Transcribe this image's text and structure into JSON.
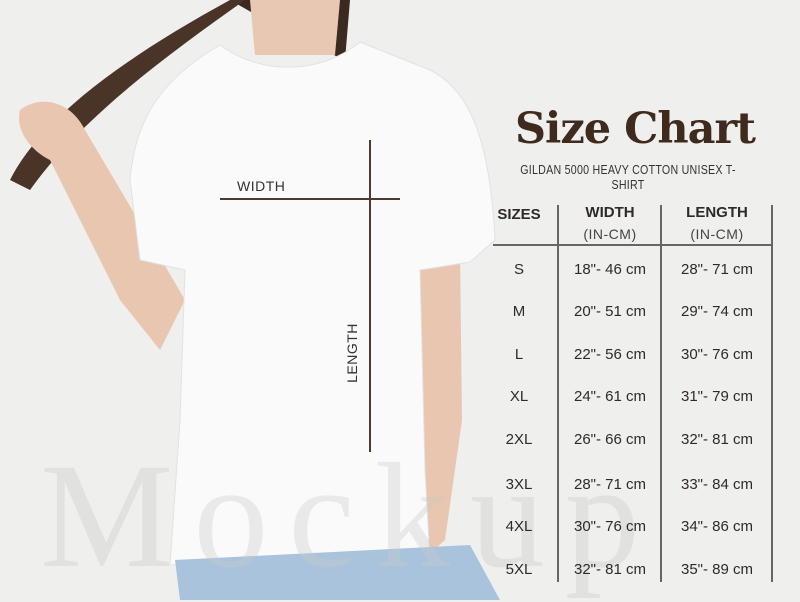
{
  "title": "Size Chart",
  "subtitle": "GILDAN 5000 HEAVY COTTON UNISEX T-SHIRT",
  "measure_labels": {
    "width": "WIDTH",
    "length": "LENGTH"
  },
  "watermark": "Mockup",
  "colors": {
    "title": "#3f2a1e",
    "background": "#efefed"
  },
  "table": {
    "headers": [
      {
        "label": "SIZES",
        "unit": ""
      },
      {
        "label": "WIDTH",
        "unit": "(IN-CM)"
      },
      {
        "label": "LENGTH",
        "unit": "(IN-CM)"
      }
    ],
    "rows": [
      {
        "size": "S",
        "width": "18\"- 46 cm",
        "length": "28\"- 71 cm"
      },
      {
        "size": "M",
        "width": "20\"- 51 cm",
        "length": "29\"- 74 cm"
      },
      {
        "size": "L",
        "width": "22\"- 56 cm",
        "length": "30\"- 76 cm"
      },
      {
        "size": "XL",
        "width": "24\"- 61 cm",
        "length": "31\"- 79 cm"
      },
      {
        "size": "2XL",
        "width": "26\"- 66 cm",
        "length": "32\"- 81 cm"
      },
      {
        "size": "3XL",
        "width": "28\"- 71 cm",
        "length": "33\"- 84 cm"
      },
      {
        "size": "4XL",
        "width": "30\"- 76 cm",
        "length": "34\"- 86 cm"
      },
      {
        "size": "5XL",
        "width": "32\"- 81 cm",
        "length": "35\"- 89 cm"
      }
    ]
  }
}
